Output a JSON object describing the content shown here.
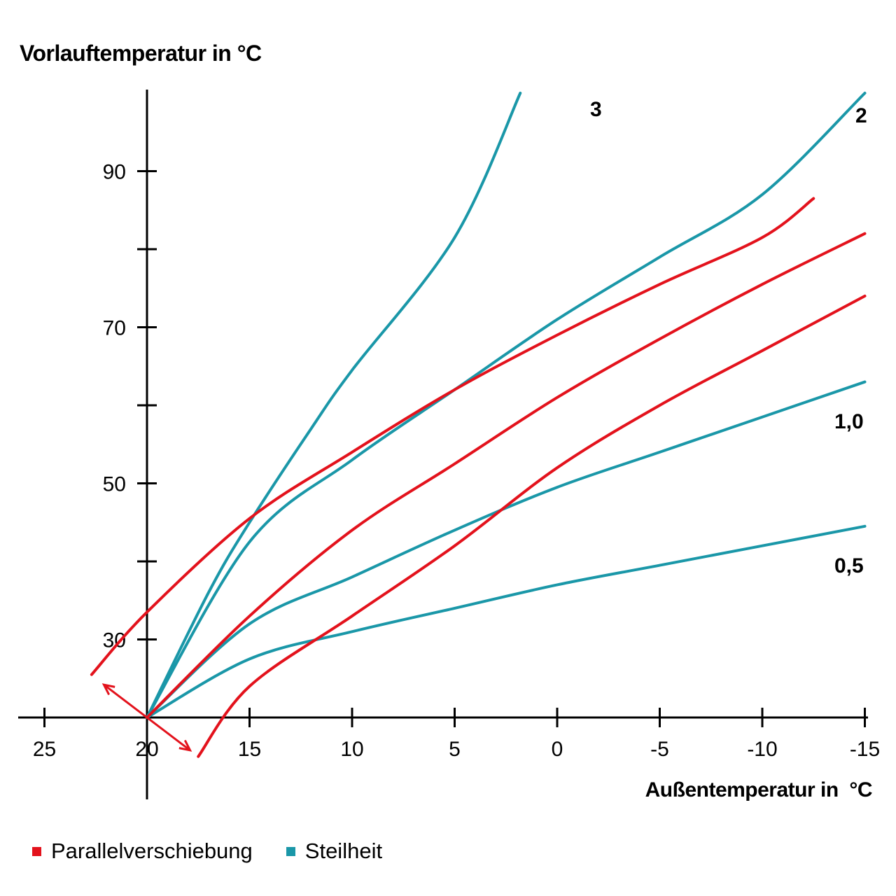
{
  "chart_data": {
    "type": "line",
    "ylabel": "Vorlauftemperatur in °C",
    "xlabel": "Außentemperatur in  °C",
    "xlim": [
      27,
      -15
    ],
    "ylim": [
      8,
      100
    ],
    "x_ticks": [
      25,
      20,
      15,
      10,
      5,
      0,
      -5,
      -10,
      -15
    ],
    "x_tick_labels": [
      "25",
      "20",
      "15",
      "10",
      "5",
      "0",
      "-5",
      "-10",
      "-15"
    ],
    "y_ticks": [
      30,
      40,
      50,
      60,
      70,
      80,
      90
    ],
    "y_tick_labels": [
      "30",
      "",
      "50",
      "",
      "70",
      "",
      "90"
    ],
    "series": [
      {
        "group": "Steilheit",
        "name": "3",
        "color": "#1a97a8",
        "points": [
          [
            20,
            20
          ],
          [
            17,
            36
          ],
          [
            15,
            45
          ],
          [
            12,
            57
          ],
          [
            10,
            64.5
          ],
          [
            5,
            81.5
          ],
          [
            1.8,
            100
          ]
        ]
      },
      {
        "group": "Steilheit",
        "name": "2",
        "color": "#1a97a8",
        "points": [
          [
            20,
            20
          ],
          [
            15,
            42.5
          ],
          [
            10,
            53
          ],
          [
            5,
            62
          ],
          [
            0,
            71
          ],
          [
            -5,
            79
          ],
          [
            -10,
            87
          ],
          [
            -15,
            100
          ]
        ]
      },
      {
        "group": "Steilheit",
        "name": "1,0",
        "color": "#1a97a8",
        "points": [
          [
            20,
            20
          ],
          [
            15,
            32
          ],
          [
            10,
            38
          ],
          [
            5,
            44
          ],
          [
            0,
            49.5
          ],
          [
            -5,
            54
          ],
          [
            -10,
            58.5
          ],
          [
            -15,
            63
          ]
        ]
      },
      {
        "group": "Steilheit",
        "name": "0,5",
        "color": "#1a97a8",
        "points": [
          [
            20,
            20
          ],
          [
            15,
            27.5
          ],
          [
            10,
            31
          ],
          [
            5,
            34
          ],
          [
            0,
            37
          ],
          [
            -5,
            39.5
          ],
          [
            -10,
            42
          ],
          [
            -15,
            44.5
          ]
        ]
      },
      {
        "group": "Parallelverschiebung",
        "name": "",
        "color": "#e3121c",
        "points": [
          [
            22.7,
            25.5
          ],
          [
            20,
            33.5
          ],
          [
            15,
            45.5
          ],
          [
            10,
            54
          ],
          [
            5,
            62
          ],
          [
            0,
            69
          ],
          [
            -5,
            75.5
          ],
          [
            -10,
            81.5
          ],
          [
            -12.5,
            86.5
          ]
        ]
      },
      {
        "group": "Parallelverschiebung",
        "name": "",
        "color": "#e3121c",
        "points": [
          [
            20,
            20
          ],
          [
            15,
            33
          ],
          [
            10,
            44
          ],
          [
            5,
            52.5
          ],
          [
            0,
            61
          ],
          [
            -5,
            68.5
          ],
          [
            -10,
            75.5
          ],
          [
            -15,
            82
          ]
        ]
      },
      {
        "group": "Parallelverschiebung",
        "name": "",
        "color": "#e3121c",
        "points": [
          [
            17.5,
            15
          ],
          [
            15,
            24
          ],
          [
            10,
            33
          ],
          [
            5,
            42
          ],
          [
            0,
            52
          ],
          [
            -5,
            60
          ],
          [
            -10,
            67
          ],
          [
            -15,
            74
          ]
        ]
      }
    ],
    "annotations": [
      {
        "kind": "double-arrow",
        "color": "#e3121c",
        "from": [
          22.1,
          24.2
        ],
        "to": [
          17.9,
          15.8
        ]
      }
    ],
    "legend": {
      "placement": "bottom-left",
      "entries": [
        {
          "label": "Parallelverschiebung",
          "color": "#e3121c"
        },
        {
          "label": "Steilheit",
          "color": "#1a97a8"
        }
      ]
    },
    "grid": false
  }
}
